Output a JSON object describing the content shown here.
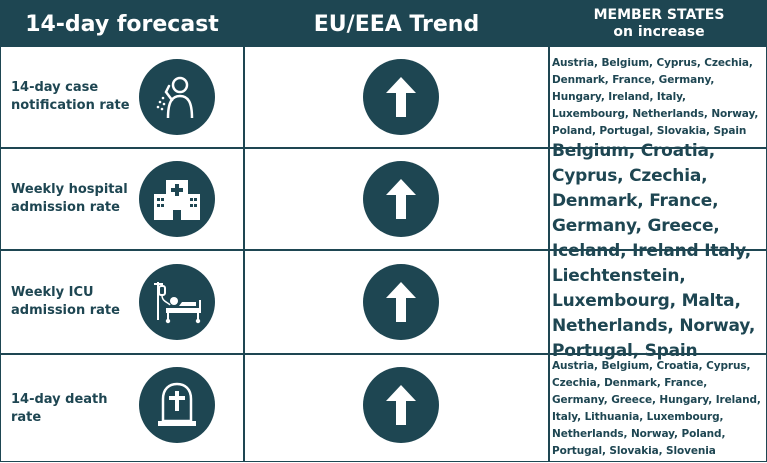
{
  "header": {
    "col1": "14-day forecast",
    "col2": "EU/EEA Trend",
    "col3_line1": "MEMBER STATES",
    "col3_line2": "on increase"
  },
  "rows": [
    {
      "label": "14-day case notification rate",
      "icon": "coughing-person-icon",
      "trend": "up-arrow-icon"
    },
    {
      "label": "Weekly hospital admission rate",
      "icon": "hospital-building-icon",
      "trend": "up-arrow-icon"
    },
    {
      "label": "Weekly ICU admission rate",
      "icon": "icu-bed-drip-icon",
      "trend": "up-arrow-icon"
    },
    {
      "label": "14-day death rate",
      "icon": "tombstone-cross-icon",
      "trend": "up-arrow-icon"
    }
  ],
  "states": {
    "cases": "Austria, Belgium, Cyprus, Czechia, Denmark, France, Germany, Hungary, Ireland, Italy, Luxembourg, Netherlands, Norway, Poland, Portugal, Slovakia, Spain",
    "hospital_icu": "Belgium, Croatia, Cyprus, Czechia, Denmark, France, Germany, Greece, Iceland, Ireland Italy, Liechtenstein, Luxembourg, Malta, Netherlands, Norway, Portugal, Spain",
    "deaths": "Austria, Belgium, Croatia, Cyprus, Czechia, Denmark, France, Germany, Greece, Hungary, Ireland, Italy, Lithuania, Luxembourg, Netherlands, Norway, Poland, Portugal, Slovakia, Slovenia"
  },
  "colors": {
    "primary": "#1e4652",
    "background": "#ffffff"
  }
}
